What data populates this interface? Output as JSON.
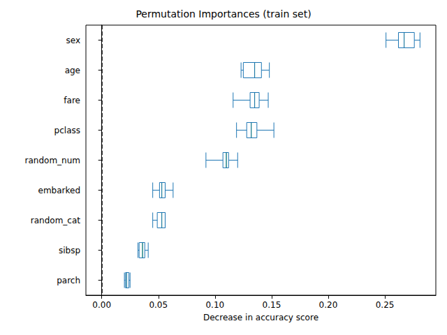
{
  "chart_data": {
    "type": "boxplot",
    "title": "Permutation Importances (train set)",
    "x_label": "Decrease in accuracy score",
    "orientation": "horizontal",
    "categories": [
      "sex",
      "age",
      "fare",
      "pclass",
      "random_num",
      "embarked",
      "random_cat",
      "sibsp",
      "parch"
    ],
    "values": [
      [
        0.251,
        0.262,
        0.267,
        0.276,
        0.281
      ],
      [
        0.123,
        0.125,
        0.135,
        0.141,
        0.148
      ],
      [
        0.116,
        0.131,
        0.135,
        0.139,
        0.147
      ],
      [
        0.119,
        0.128,
        0.132,
        0.137,
        0.152
      ],
      [
        0.092,
        0.107,
        0.11,
        0.112,
        0.12
      ],
      [
        0.045,
        0.051,
        0.053,
        0.056,
        0.063
      ],
      [
        0.045,
        0.049,
        0.053,
        0.056,
        0.056
      ],
      [
        0.032,
        0.033,
        0.036,
        0.038,
        0.041
      ],
      [
        0.02,
        0.021,
        0.022,
        0.024,
        0.025
      ]
    ],
    "color": "#1f77b4",
    "reference_x": 0,
    "xlim": [
      -0.014,
      0.295
    ],
    "xticks": [
      {
        "value": 0,
        "label": "0.00"
      },
      {
        "value": 0.05,
        "label": "0.05"
      },
      {
        "value": 0.1,
        "label": "0.10"
      },
      {
        "value": 0.15,
        "label": "0.15"
      },
      {
        "value": 0.2,
        "label": "0.20"
      },
      {
        "value": 0.25,
        "label": "0.25"
      }
    ],
    "grid": false
  }
}
